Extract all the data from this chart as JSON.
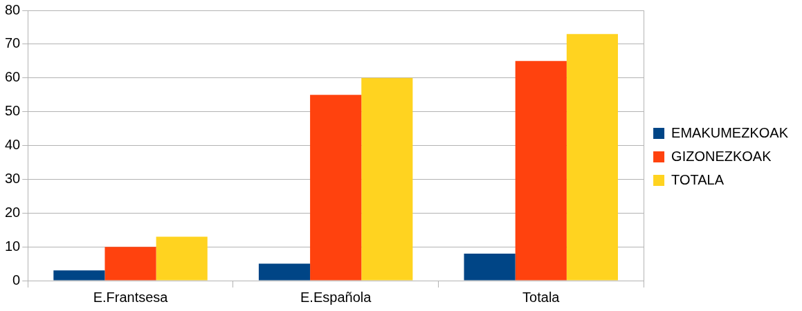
{
  "chart_data": {
    "type": "bar",
    "categories": [
      "E.Frantsesa",
      "E.Española",
      "Totala"
    ],
    "series": [
      {
        "name": "EMAKUMEZKOAK",
        "color": "#004586",
        "values": [
          3,
          5,
          8
        ]
      },
      {
        "name": "GIZONEZKOAK",
        "color": "#ff420e",
        "values": [
          10,
          55,
          65
        ]
      },
      {
        "name": "TOTALA",
        "color": "#ffd320",
        "values": [
          13,
          60,
          73
        ]
      }
    ],
    "ylim": [
      0,
      80
    ],
    "yticks": [
      0,
      10,
      20,
      30,
      40,
      50,
      60,
      70,
      80
    ],
    "grid": "y",
    "legend": "right"
  }
}
